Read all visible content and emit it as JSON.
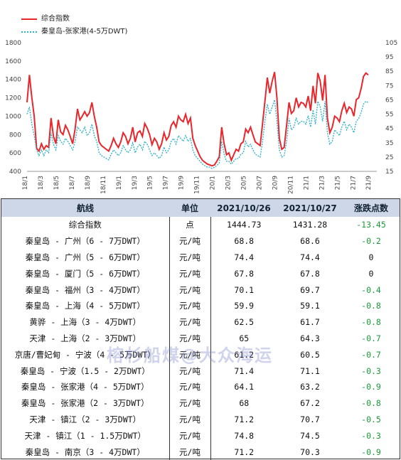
{
  "legend": {
    "series1": "综合指数",
    "series2": "秦皇岛-张家港(4-5万DWT)"
  },
  "colors": {
    "series1": "#e8262b",
    "series2": "#2ab0c8",
    "header_bg": "#cdd7e7",
    "negative": "#1a9a3a"
  },
  "chart_data": {
    "type": "line",
    "x_tick_labels": [
      "18/1",
      "18/3",
      "18/5",
      "18/7",
      "18/9",
      "18/11",
      "19/1",
      "19/3",
      "19/5",
      "19/7",
      "19/9",
      "19/11",
      "20/1",
      "20/3",
      "20/5",
      "20/7",
      "20/9",
      "20/11",
      "21/1",
      "21/3",
      "21/5",
      "21/7",
      "21/9"
    ],
    "y_left": {
      "ticks": [
        "1800",
        "1600",
        "1400",
        "1200",
        "1000",
        "800",
        "600",
        "400"
      ],
      "range": [
        400,
        1800
      ]
    },
    "y_right": {
      "ticks": [
        "105",
        "95",
        "85",
        "75",
        "65",
        "55",
        "45",
        "35",
        "25",
        "15"
      ],
      "range": [
        15,
        105
      ]
    },
    "series": [
      {
        "name": "综合指数",
        "axis": "left",
        "values": [
          1150,
          1450,
          1200,
          1000,
          650,
          620,
          700,
          640,
          680,
          660,
          980,
          780,
          700,
          960,
          830,
          800,
          900,
          850,
          780,
          700,
          860,
          1080,
          960,
          1000,
          1050,
          1000,
          1040,
          1150,
          1000,
          880,
          720,
          680,
          660,
          640,
          620,
          680,
          760,
          700,
          660,
          720,
          820,
          780,
          700,
          760,
          880,
          720,
          820,
          840,
          780,
          920,
          870,
          800,
          690,
          760,
          720,
          640,
          700,
          820,
          740,
          780,
          900,
          940,
          880,
          1000,
          960,
          940,
          1020,
          920,
          980,
          760,
          680,
          620,
          560,
          520,
          500,
          480,
          470,
          460,
          470,
          510,
          560,
          880,
          700,
          580,
          600,
          520,
          580,
          640,
          620,
          700,
          720,
          860,
          820,
          880,
          800,
          720,
          700,
          680,
          920,
          1160,
          1420,
          1250,
          1380,
          1480,
          1200,
          760,
          640,
          660,
          900,
          1150,
          1030,
          1060,
          1200,
          1100,
          1150,
          1140,
          1100,
          1220,
          1060,
          1330,
          1140,
          1470,
          1380,
          1170,
          1450,
          980,
          820,
          880,
          1000,
          980,
          940,
          1060,
          1140,
          1040,
          1100,
          1080,
          1000,
          1180,
          1200,
          1300,
          1430,
          1470,
          1450
        ]
      },
      {
        "name": "秦皇岛-张家港(4-5万DWT)",
        "axis": "right",
        "values": [
          55,
          60,
          48,
          40,
          30,
          26,
          30,
          26,
          30,
          28,
          42,
          34,
          30,
          40,
          36,
          34,
          38,
          36,
          33,
          30,
          36,
          46,
          44,
          42,
          46,
          40,
          42,
          48,
          40,
          36,
          28,
          26,
          25,
          24,
          23,
          27,
          30,
          28,
          26,
          28,
          33,
          30,
          28,
          30,
          35,
          28,
          32,
          34,
          30,
          36,
          34,
          30,
          26,
          28,
          26,
          24,
          26,
          32,
          28,
          30,
          36,
          38,
          34,
          40,
          38,
          36,
          40,
          36,
          38,
          30,
          26,
          24,
          22,
          20,
          19,
          18,
          18,
          17,
          18,
          19,
          21,
          36,
          27,
          22,
          22,
          20,
          22,
          24,
          24,
          27,
          28,
          36,
          32,
          34,
          30,
          27,
          26,
          25,
          36,
          50,
          62,
          55,
          60,
          65,
          50,
          30,
          25,
          26,
          36,
          52,
          44,
          46,
          52,
          48,
          50,
          50,
          48,
          54,
          46,
          58,
          48,
          64,
          60,
          50,
          64,
          42,
          34,
          36,
          44,
          42,
          40,
          46,
          50,
          44,
          48,
          46,
          42,
          50,
          52,
          56,
          62,
          64,
          63
        ]
      }
    ]
  },
  "table": {
    "headers": [
      "航线",
      "单位",
      "2021/10/26",
      "2021/10/27",
      "涨跌点数"
    ],
    "rows": [
      [
        "综合指数",
        "点",
        "1444.73",
        "1431.28",
        "-13.45"
      ],
      [
        "秦皇岛 - 广州（6 - 7万DWT）",
        "元/吨",
        "68.8",
        "68.6",
        "-0.2"
      ],
      [
        "秦皇岛 - 广州（5 - 6万DWT）",
        "元/吨",
        "74.4",
        "74.4",
        "0"
      ],
      [
        "秦皇岛 - 厦门（5 - 6万DWT）",
        "元/吨",
        "67.8",
        "67.8",
        "0"
      ],
      [
        "秦皇岛 - 福州（3 - 4万DWT）",
        "元/吨",
        "70.1",
        "69.7",
        "-0.4"
      ],
      [
        "秦皇岛 - 上海（4 - 5万DWT）",
        "元/吨",
        "59.9",
        "59.1",
        "-0.8"
      ],
      [
        "黄骅 - 上海（3 - 4万DWT）",
        "元/吨",
        "62.5",
        "61.7",
        "-0.8"
      ],
      [
        "天津 - 上海（2 - 3万DWT）",
        "元/吨",
        "65",
        "64.3",
        "-0.7"
      ],
      [
        "京唐/曹妃甸 - 宁波（4 - 5万DWT）",
        "元/吨",
        "61.2",
        "60.5",
        "-0.7"
      ],
      [
        "秦皇岛 - 宁波（1.5 - 2万DWT）",
        "元/吨",
        "71.4",
        "71.1",
        "-0.3"
      ],
      [
        "秦皇岛 - 张家港（4 - 5万DWT）",
        "元/吨",
        "64.1",
        "63.2",
        "-0.9"
      ],
      [
        "秦皇岛 - 张家港（2 - 3万DWT）",
        "元/吨",
        "68",
        "67.2",
        "-0.8"
      ],
      [
        "天津 - 镇江（2 - 3万DWT）",
        "元/吨",
        "71.2",
        "70.7",
        "-0.5"
      ],
      [
        "天津 - 镇江（1 - 1.5万DWT）",
        "元/吨",
        "74.8",
        "74.5",
        "-0.3"
      ],
      [
        "秦皇岛 - 南京（3 - 4万DWT）",
        "元/吨",
        "71.2",
        "70.3",
        "-0.9"
      ]
    ]
  },
  "watermark": "榕杉船煤@大众海运"
}
